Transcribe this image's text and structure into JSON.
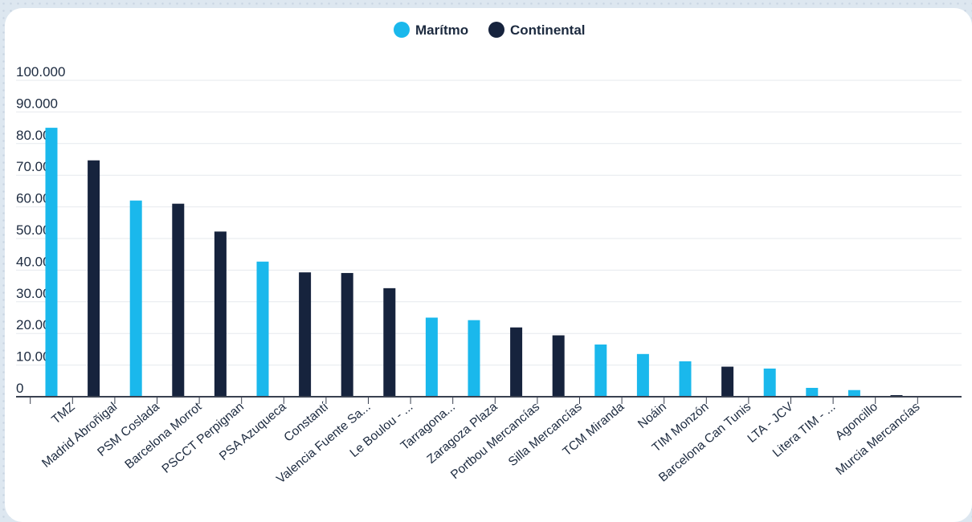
{
  "chart_data": {
    "type": "bar",
    "categories": [
      "TMZ",
      "Madrid Abroñigal",
      "PSM Coslada",
      "Barcelona Morrot",
      "PSCCT Perpignan",
      "PSA Azuqueca",
      "Constantí",
      "Valencia Fuente Sa...",
      "Le Boulou - ...",
      "Tarragona...",
      "Zaragoza Plaza",
      "Portbou Mercancías",
      "Silla Mercancías",
      "TCM Miranda",
      "Noáin",
      "TIM Monzón",
      "Barcelona Can Tunis",
      "LTA - JCV",
      "Litera TIM - ...",
      "Agoncillo",
      "Murcia Mercancías"
    ],
    "series": [
      {
        "name": "Marítmo",
        "color": "#1ab8ec",
        "values": [
          85000,
          0,
          62000,
          0,
          0,
          42700,
          0,
          0,
          0,
          25000,
          24200,
          0,
          0,
          16500,
          13500,
          11200,
          0,
          8900,
          2800,
          2100,
          0
        ]
      },
      {
        "name": "Continental",
        "color": "#16233d",
        "values": [
          0,
          74700,
          0,
          61000,
          52200,
          0,
          39300,
          39100,
          34300,
          0,
          0,
          21900,
          19400,
          0,
          0,
          0,
          9500,
          0,
          0,
          0,
          500
        ]
      }
    ],
    "ylim": [
      0,
      100000
    ],
    "yticks": [
      0,
      10000,
      20000,
      30000,
      40000,
      50000,
      60000,
      70000,
      80000,
      90000,
      100000
    ],
    "ytick_labels": [
      "0",
      "10.000",
      "20.000",
      "30.000",
      "40.000",
      "50.000",
      "60.000",
      "70.000",
      "80.000",
      "90.000",
      "100.000"
    ],
    "grid": true,
    "legend_position": "top-center"
  }
}
